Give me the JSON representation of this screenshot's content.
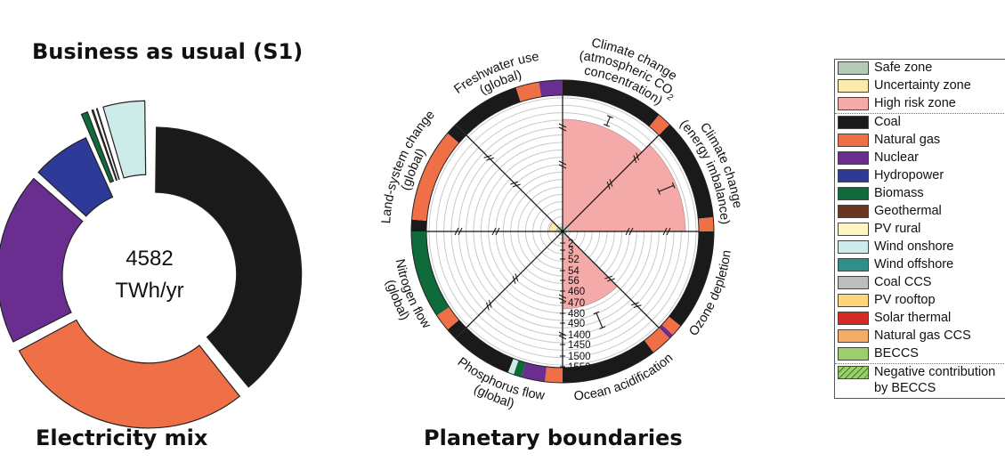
{
  "titles": {
    "scenario": "Business as usual (S1)",
    "left_caption": "Electricity mix",
    "right_caption": "Planetary boundaries"
  },
  "chart_data": [
    {
      "type": "pie",
      "variant": "donut",
      "center_label_value": "4582",
      "center_label_unit": "TWh/yr",
      "slices": [
        {
          "name": "Coal",
          "value": 0.375,
          "color": "#1a1a1a"
        },
        {
          "name": "Natural gas",
          "value": 0.27,
          "color": "#ef7047"
        },
        {
          "name": "Nuclear",
          "value": 0.185,
          "color": "#6a2e90"
        },
        {
          "name": "Hydropower",
          "value": 0.065,
          "color": "#2e3a97"
        },
        {
          "name": "Biomass",
          "value": 0.01,
          "color": "#0f6b3a"
        },
        {
          "name": "Geothermal",
          "value": 0.005,
          "color": "#6b3523"
        },
        {
          "name": "PV rural",
          "value": 0.003,
          "color": "#fdf5c2"
        },
        {
          "name": "Wind onshore",
          "value": 0.045,
          "color": "#cdebe8"
        }
      ]
    },
    {
      "type": "radial",
      "categories": [
        "Climate change (atmospheric CO2 concentration)",
        "Climate change (energy imbalance)",
        "Ozone depletion",
        "Ocean acidification",
        "Phosphorus flow (global)",
        "Nitrogen flow (global)",
        "Land-system change (global)",
        "Freshwater use (global)"
      ],
      "category_labels": [
        {
          "lines": [
            "Climate change",
            "(atmospheric CO",
            "concentration)"
          ],
          "subscript": "2"
        },
        {
          "lines": [
            "Climate change",
            "(energy imbalance)"
          ]
        },
        {
          "lines": [
            "Ozone depletion"
          ]
        },
        {
          "lines": [
            "Ocean acidification"
          ]
        },
        {
          "lines": [
            "Phosphorus flow",
            "(global)"
          ]
        },
        {
          "lines": [
            "Nitrogen flow",
            "(global)"
          ]
        },
        {
          "lines": [
            "Land-system change",
            "(global)"
          ]
        },
        {
          "lines": [
            "Freshwater use",
            "(global)"
          ]
        }
      ],
      "values_relative_radius": [
        0.84,
        0.92,
        0.03,
        0.58,
        0.03,
        0.03,
        0.1,
        0.04
      ],
      "error_bars": [
        [
          0.86,
          0.93
        ],
        [
          0.78,
          0.9
        ],
        null,
        [
          0.66,
          0.78
        ],
        null,
        null,
        null,
        null
      ],
      "axis_tick_labels": [
        "2",
        "3",
        "52",
        "54",
        "56",
        "460",
        "470",
        "480",
        "490",
        "1400",
        "1450",
        "1500",
        "1550"
      ],
      "zones": {
        "safe": "#b5c9b6",
        "uncertainty": "#fcecac",
        "high_risk": "#f3aaa8"
      },
      "contribution_ring": [
        [
          "Coal",
          0.88,
          "Natural gas",
          0.12
        ],
        [
          "Coal",
          0.88,
          "Natural gas",
          0.12
        ],
        [
          "Coal",
          0.86,
          "Natural gas",
          0.1,
          "Nuclear",
          0.04
        ],
        [
          "Natural gas",
          0.18,
          "Coal",
          0.82
        ],
        [
          "Natural gas",
          0.15,
          "Nuclear",
          0.2,
          "Biomass",
          0.07,
          "Wind onshore",
          0.05,
          "Coal",
          0.53
        ],
        [
          "Coal",
          0.1,
          "Natural gas",
          0.15,
          "Biomass",
          0.75
        ],
        [
          "Coal",
          0.1,
          "Natural gas",
          0.8,
          "Coal",
          0.1
        ],
        [
          "Coal",
          0.6,
          "Natural gas",
          0.2,
          "Nuclear",
          0.2
        ]
      ]
    }
  ],
  "legend": [
    {
      "label": "Safe zone",
      "color": "#b5c9b6"
    },
    {
      "label": "Uncertainty zone",
      "color": "#fcecac"
    },
    {
      "label": "High risk zone",
      "color": "#f3aaa8"
    },
    {
      "label": "Coal",
      "color": "#1a1a1a"
    },
    {
      "label": "Natural gas",
      "color": "#ef7047"
    },
    {
      "label": "Nuclear",
      "color": "#6a2e90"
    },
    {
      "label": "Hydropower",
      "color": "#2e3a97"
    },
    {
      "label": "Biomass",
      "color": "#0f6b3a"
    },
    {
      "label": "Geothermal",
      "color": "#6b3523"
    },
    {
      "label": "PV rural",
      "color": "#fdf5c2"
    },
    {
      "label": "Wind onshore",
      "color": "#cdebe8"
    },
    {
      "label": "Wind offshore",
      "color": "#2f8f8a"
    },
    {
      "label": "Coal CCS",
      "color": "#bdbdbd"
    },
    {
      "label": "PV rooftop",
      "color": "#fbd77a"
    },
    {
      "label": "Solar thermal",
      "color": "#d42b27"
    },
    {
      "label": "Natural gas CCS",
      "color": "#f4ad62"
    },
    {
      "label": "BECCS",
      "color": "#9ccf6b"
    },
    {
      "label": "Negative contribution by BECCS",
      "label_lines": [
        "Negative contribution",
        "by BECCS"
      ],
      "color": "#9ccf6b",
      "hatched": true
    }
  ]
}
